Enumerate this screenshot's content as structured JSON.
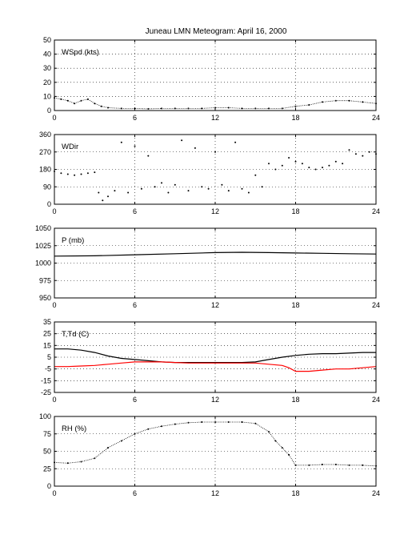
{
  "chart_data": {
    "title": "Juneau LMN Meteogram:      April 16, 2000",
    "x_ticks": [
      0,
      6,
      12,
      18,
      24
    ],
    "xlim": [
      0,
      24
    ],
    "grid": true,
    "panels": [
      {
        "type": "line",
        "label": "WSpd (kts)",
        "ylim": [
          0,
          50
        ],
        "y_ticks": [
          0,
          10,
          20,
          30,
          40,
          50
        ],
        "series": [
          {
            "color": "#000000",
            "style": "dots",
            "x": [
              0,
              0.5,
              1,
              1.5,
              2,
              2.5,
              3,
              3.5,
              4,
              5,
              6,
              7,
              8,
              9,
              10,
              11,
              12,
              13,
              14,
              15,
              16,
              17,
              18,
              19,
              20,
              21,
              22,
              23,
              24
            ],
            "y": [
              9,
              8,
              7,
              5,
              7,
              8,
              5,
              3,
              2,
              1.5,
              1.5,
              1.2,
              1.5,
              1.5,
              1.5,
              1.5,
              2,
              2,
              1.5,
              1.5,
              1.5,
              1.5,
              3,
              4,
              6,
              7,
              7,
              6,
              5
            ]
          }
        ]
      },
      {
        "type": "scatter",
        "label": "WDir",
        "ylim": [
          0,
          360
        ],
        "y_ticks": [
          0,
          90,
          180,
          270,
          360
        ],
        "series": [
          {
            "color": "#000000",
            "style": "dots",
            "x": [
              0,
              0.5,
              1,
              1.5,
              2,
              2.5,
              3,
              3.3,
              3.6,
              4,
              4.5,
              5,
              5.5,
              6,
              6.5,
              7,
              7.5,
              8,
              8.5,
              9,
              9.5,
              10,
              10.5,
              11,
              11.5,
              12,
              12.5,
              13,
              13.5,
              14,
              14.5,
              15,
              15.5,
              16,
              16.5,
              17,
              17.5,
              18,
              18.5,
              19,
              19.5,
              20,
              20.5,
              21,
              21.5,
              22,
              22.5,
              23,
              23.5,
              24
            ],
            "y": [
              170,
              160,
              155,
              150,
              155,
              160,
              165,
              60,
              20,
              40,
              70,
              320,
              60,
              300,
              80,
              250,
              90,
              110,
              60,
              100,
              330,
              70,
              290,
              90,
              80,
              270,
              100,
              70,
              320,
              80,
              60,
              150,
              90,
              210,
              180,
              200,
              240,
              220,
              210,
              190,
              180,
              190,
              200,
              220,
              210,
              280,
              260,
              250,
              270,
              260
            ]
          }
        ]
      },
      {
        "type": "line",
        "label": "P (mb)",
        "ylim": [
          950,
          1050
        ],
        "y_ticks": [
          950,
          975,
          1000,
          1025,
          1050
        ],
        "series": [
          {
            "color": "#000000",
            "style": "line",
            "x": [
              0,
              3,
              6,
              9,
              12,
              14,
              16,
              18,
              20,
              22,
              24
            ],
            "y": [
              1010,
              1010.5,
              1012,
              1013.5,
              1015,
              1015.5,
              1015,
              1014.5,
              1014,
              1013.5,
              1013
            ]
          }
        ]
      },
      {
        "type": "line",
        "label": "T,Td (C)",
        "ylim": [
          -25,
          35
        ],
        "y_ticks": [
          -25,
          -15,
          -5,
          5,
          15,
          25,
          35
        ],
        "series": [
          {
            "color": "#000000",
            "style": "line",
            "x": [
              0,
              1,
              2,
              3,
              4,
              5,
              6,
              7,
              8,
              9,
              10,
              11,
              12,
              13,
              14,
              15,
              16,
              17,
              18,
              19,
              20,
              21,
              22,
              23,
              24
            ],
            "y": [
              12,
              12,
              11,
              9,
              6,
              4,
              3,
              2,
              1,
              0.5,
              0.5,
              0.5,
              0.5,
              0.5,
              0.5,
              1,
              3,
              5,
              6.5,
              7.5,
              8,
              8,
              8.5,
              9,
              9
            ]
          },
          {
            "color": "#ff0000",
            "style": "line",
            "x": [
              0,
              1,
              2,
              3,
              4,
              5,
              6,
              7,
              8,
              9,
              10,
              11,
              12,
              13,
              14,
              15,
              16,
              17,
              17.5,
              18,
              19,
              20,
              21,
              22,
              23,
              24
            ],
            "y": [
              -3,
              -3,
              -2.5,
              -2,
              -1,
              0,
              1,
              1,
              1,
              0.5,
              0,
              0,
              0,
              0,
              0,
              0,
              -1,
              -2,
              -4,
              -7,
              -7,
              -6,
              -5,
              -5,
              -4,
              -3
            ]
          }
        ]
      },
      {
        "type": "line",
        "label": "RH (%)",
        "ylim": [
          0,
          100
        ],
        "y_ticks": [
          0,
          25,
          50,
          75,
          100
        ],
        "series": [
          {
            "color": "#000000",
            "style": "dots",
            "x": [
              0,
              1,
              2,
              3,
              4,
              5,
              6,
              7,
              8,
              9,
              10,
              11,
              12,
              13,
              14,
              15,
              16,
              16.5,
              17,
              17.5,
              18,
              19,
              20,
              21,
              22,
              23,
              24
            ],
            "y": [
              34,
              33,
              35,
              40,
              55,
              65,
              75,
              82,
              86,
              89,
              91,
              92,
              92,
              92,
              92,
              90,
              78,
              65,
              55,
              45,
              30,
              30,
              31,
              31,
              30,
              30,
              29
            ]
          }
        ]
      }
    ]
  }
}
